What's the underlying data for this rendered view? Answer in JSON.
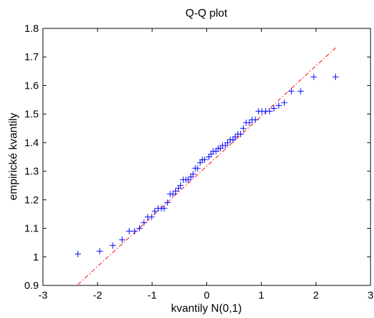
{
  "chart_data": {
    "type": "scatter",
    "title": "Q-Q plot",
    "xlabel": "kvantily N(0,1)",
    "ylabel": "empirické kvantily",
    "xlim": [
      -3,
      3
    ],
    "ylim": [
      0.9,
      1.8
    ],
    "xticks": [
      "-3",
      "-2",
      "-1",
      "0",
      "1",
      "2",
      "3"
    ],
    "yticks": [
      "0.9",
      "1",
      "1.1",
      "1.2",
      "1.3",
      "1.4",
      "1.5",
      "1.6",
      "1.7",
      "1.8"
    ],
    "grid": false,
    "marker": "+",
    "colors": {
      "points": "#0000ff",
      "reference_line": "#ff0000"
    },
    "series": [
      {
        "values": [
          [
            -2.36,
            1.01
          ],
          [
            -1.96,
            1.02
          ],
          [
            -1.72,
            1.04
          ],
          [
            -1.55,
            1.06
          ],
          [
            -1.42,
            1.09
          ],
          [
            -1.32,
            1.09
          ],
          [
            -1.23,
            1.1
          ],
          [
            -1.15,
            1.12
          ],
          [
            -1.08,
            1.14
          ],
          [
            -1.01,
            1.14
          ],
          [
            -0.95,
            1.16
          ],
          [
            -0.89,
            1.17
          ],
          [
            -0.83,
            1.17
          ],
          [
            -0.78,
            1.17
          ],
          [
            -0.72,
            1.19
          ],
          [
            -0.67,
            1.22
          ],
          [
            -0.62,
            1.22
          ],
          [
            -0.57,
            1.23
          ],
          [
            -0.52,
            1.24
          ],
          [
            -0.48,
            1.25
          ],
          [
            -0.43,
            1.27
          ],
          [
            -0.38,
            1.27
          ],
          [
            -0.34,
            1.27
          ],
          [
            -0.29,
            1.28
          ],
          [
            -0.25,
            1.29
          ],
          [
            -0.21,
            1.31
          ],
          [
            -0.17,
            1.31
          ],
          [
            -0.12,
            1.33
          ],
          [
            -0.08,
            1.34
          ],
          [
            -0.04,
            1.34
          ],
          [
            0.04,
            1.35
          ],
          [
            0.08,
            1.36
          ],
          [
            0.12,
            1.37
          ],
          [
            0.17,
            1.37
          ],
          [
            0.21,
            1.38
          ],
          [
            0.25,
            1.38
          ],
          [
            0.29,
            1.39
          ],
          [
            0.34,
            1.39
          ],
          [
            0.38,
            1.4
          ],
          [
            0.43,
            1.41
          ],
          [
            0.48,
            1.41
          ],
          [
            0.52,
            1.42
          ],
          [
            0.57,
            1.43
          ],
          [
            0.62,
            1.43
          ],
          [
            0.67,
            1.45
          ],
          [
            0.72,
            1.47
          ],
          [
            0.78,
            1.47
          ],
          [
            0.83,
            1.48
          ],
          [
            0.89,
            1.48
          ],
          [
            0.95,
            1.51
          ],
          [
            1.01,
            1.51
          ],
          [
            1.08,
            1.51
          ],
          [
            1.15,
            1.51
          ],
          [
            1.23,
            1.52
          ],
          [
            1.32,
            1.53
          ],
          [
            1.42,
            1.54
          ],
          [
            1.55,
            1.58
          ],
          [
            1.72,
            1.58
          ],
          [
            1.96,
            1.63
          ],
          [
            2.36,
            1.63
          ]
        ]
      }
    ],
    "reference_line": {
      "x": [
        -2.36,
        2.36
      ],
      "y": [
        0.903,
        1.732
      ]
    }
  }
}
